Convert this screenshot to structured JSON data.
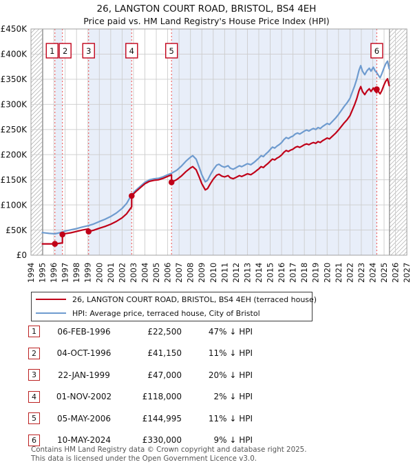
{
  "title": "26, LANGTON COURT ROAD, BRISTOL, BS4 4EH",
  "subtitle": "Price paid vs. HM Land Registry's House Price Index (HPI)",
  "legend": [
    {
      "label": "26, LANGTON COURT ROAD, BRISTOL, BS4 4EH (terraced house)",
      "color": "#c00018"
    },
    {
      "label": "HPI: Average price, terraced house, City of Bristol",
      "color": "#6e9bcf"
    }
  ],
  "chart_data": {
    "type": "line",
    "title": "26, LANGTON COURT ROAD, BRISTOL, BS4 4EH",
    "xlabel": "",
    "ylabel": "",
    "xlim": [
      1994,
      2027
    ],
    "ylim": [
      0,
      450000
    ],
    "grid": true,
    "x_ticks": [
      1994,
      1995,
      1996,
      1997,
      1998,
      1999,
      2000,
      2001,
      2002,
      2003,
      2004,
      2005,
      2006,
      2007,
      2008,
      2009,
      2010,
      2011,
      2012,
      2013,
      2014,
      2015,
      2016,
      2017,
      2018,
      2019,
      2020,
      2021,
      2022,
      2023,
      2024,
      2025,
      2026,
      2027
    ],
    "y_ticks": [
      {
        "v": 0,
        "label": "£0"
      },
      {
        "v": 50000,
        "label": "£50K"
      },
      {
        "v": 100000,
        "label": "£100K"
      },
      {
        "v": 150000,
        "label": "£150K"
      },
      {
        "v": 200000,
        "label": "£200K"
      },
      {
        "v": 250000,
        "label": "£250K"
      },
      {
        "v": 300000,
        "label": "£300K"
      },
      {
        "v": 350000,
        "label": "£350K"
      },
      {
        "v": 400000,
        "label": "£400K"
      },
      {
        "v": 450000,
        "label": "£450K"
      }
    ],
    "hpi_data_start": 1995.03,
    "data_end": 2025.47,
    "colors": {
      "property": "#c00018",
      "hpi": "#6e9bcf",
      "band": "#e8eef9",
      "grid": "#cccccc",
      "border": "#a0a0a0",
      "sale_line": "#f05a5a",
      "hatch": "#b5b5b5",
      "boundary": "#888888"
    },
    "bands": [
      [
        1996.1,
        1996.76
      ],
      [
        1999.06,
        2002.84
      ],
      [
        2006.34,
        2024.36
      ]
    ],
    "sales": [
      {
        "n": "1",
        "x": 1996.1,
        "price": 22500,
        "label_dx": -4
      },
      {
        "n": "2",
        "x": 1996.76,
        "price": 41150,
        "label_dx": 4
      },
      {
        "n": "3",
        "x": 1999.06,
        "price": 47000,
        "label_dx": 0
      },
      {
        "n": "4",
        "x": 2002.84,
        "price": 118000,
        "label_dx": 0
      },
      {
        "n": "5",
        "x": 2006.34,
        "price": 144995,
        "label_dx": 0
      },
      {
        "n": "6",
        "x": 2024.36,
        "price": 330000,
        "label_dx": 0
      }
    ],
    "series": [
      {
        "name": "26, LANGTON COURT ROAD, BRISTOL, BS4 4EH (terraced house)",
        "color": "#c00018",
        "points": [
          [
            1995.0,
            22500
          ],
          [
            1996.1,
            22500
          ],
          [
            1996.4,
            23300
          ],
          [
            1996.76,
            24400
          ],
          [
            1996.76,
            41150
          ],
          [
            1997.0,
            42800
          ],
          [
            1997.5,
            44600
          ],
          [
            1998.0,
            47200
          ],
          [
            1998.5,
            49900
          ],
          [
            1999.06,
            52400
          ],
          [
            1999.06,
            47000
          ],
          [
            1999.5,
            49600
          ],
          [
            2000.0,
            53600
          ],
          [
            2000.5,
            57200
          ],
          [
            2001.0,
            61600
          ],
          [
            2001.5,
            67200
          ],
          [
            2002.0,
            74400
          ],
          [
            2002.4,
            82400
          ],
          [
            2002.84,
            96300
          ],
          [
            2002.84,
            118000
          ],
          [
            2003.2,
            126400
          ],
          [
            2003.6,
            134300
          ],
          [
            2004.0,
            142100
          ],
          [
            2004.4,
            147000
          ],
          [
            2004.8,
            149000
          ],
          [
            2005.2,
            150000
          ],
          [
            2005.6,
            152900
          ],
          [
            2006.0,
            156800
          ],
          [
            2006.34,
            159700
          ],
          [
            2006.34,
            144995
          ],
          [
            2006.8,
            150300
          ],
          [
            2007.2,
            157400
          ],
          [
            2007.6,
            166300
          ],
          [
            2008.0,
            173500
          ],
          [
            2008.2,
            176100
          ],
          [
            2008.5,
            169900
          ],
          [
            2008.75,
            156500
          ],
          [
            2009.0,
            142300
          ],
          [
            2009.3,
            129900
          ],
          [
            2009.5,
            132500
          ],
          [
            2009.75,
            142300
          ],
          [
            2010.0,
            151200
          ],
          [
            2010.3,
            159200
          ],
          [
            2010.5,
            161000
          ],
          [
            2010.75,
            157400
          ],
          [
            2011.0,
            155700
          ],
          [
            2011.3,
            158300
          ],
          [
            2011.5,
            153900
          ],
          [
            2011.75,
            152100
          ],
          [
            2012.0,
            154800
          ],
          [
            2012.3,
            158300
          ],
          [
            2012.5,
            156500
          ],
          [
            2012.75,
            159200
          ],
          [
            2013.0,
            161900
          ],
          [
            2013.3,
            160100
          ],
          [
            2013.6,
            164600
          ],
          [
            2013.85,
            169000
          ],
          [
            2014.0,
            171700
          ],
          [
            2014.2,
            176100
          ],
          [
            2014.4,
            174400
          ],
          [
            2014.6,
            178800
          ],
          [
            2014.8,
            182400
          ],
          [
            2015.0,
            186800
          ],
          [
            2015.2,
            191300
          ],
          [
            2015.4,
            189500
          ],
          [
            2015.6,
            193100
          ],
          [
            2015.8,
            195700
          ],
          [
            2016.0,
            199300
          ],
          [
            2016.2,
            204600
          ],
          [
            2016.4,
            208200
          ],
          [
            2016.6,
            206400
          ],
          [
            2016.8,
            209100
          ],
          [
            2017.0,
            210900
          ],
          [
            2017.2,
            214400
          ],
          [
            2017.4,
            216200
          ],
          [
            2017.6,
            214400
          ],
          [
            2017.8,
            217100
          ],
          [
            2018.0,
            219800
          ],
          [
            2018.2,
            221500
          ],
          [
            2018.4,
            219800
          ],
          [
            2018.6,
            222400
          ],
          [
            2018.8,
            224200
          ],
          [
            2019.0,
            222400
          ],
          [
            2019.2,
            226000
          ],
          [
            2019.4,
            224200
          ],
          [
            2019.6,
            227700
          ],
          [
            2019.8,
            230400
          ],
          [
            2020.0,
            233100
          ],
          [
            2020.2,
            231300
          ],
          [
            2020.5,
            237500
          ],
          [
            2020.75,
            242800
          ],
          [
            2021.0,
            249100
          ],
          [
            2021.25,
            256200
          ],
          [
            2021.5,
            263300
          ],
          [
            2021.75,
            269500
          ],
          [
            2022.0,
            277500
          ],
          [
            2022.2,
            288200
          ],
          [
            2022.4,
            298900
          ],
          [
            2022.6,
            311400
          ],
          [
            2022.8,
            327400
          ],
          [
            2022.95,
            335400
          ],
          [
            2023.1,
            325600
          ],
          [
            2023.3,
            319400
          ],
          [
            2023.5,
            326500
          ],
          [
            2023.7,
            331000
          ],
          [
            2023.85,
            325600
          ],
          [
            2024.05,
            332700
          ],
          [
            2024.2,
            326500
          ],
          [
            2024.36,
            322900
          ],
          [
            2024.36,
            330000
          ],
          [
            2024.5,
            325500
          ],
          [
            2024.65,
            320900
          ],
          [
            2024.8,
            327300
          ],
          [
            2025.0,
            339100
          ],
          [
            2025.15,
            346400
          ],
          [
            2025.3,
            350900
          ],
          [
            2025.45,
            337300
          ]
        ]
      },
      {
        "name": "HPI: Average price, terraced house, City of Bristol",
        "color": "#6e9bcf",
        "points": [
          [
            1995.0,
            45000
          ],
          [
            1995.3,
            44200
          ],
          [
            1995.6,
            43400
          ],
          [
            1996.1,
            42500
          ],
          [
            1996.4,
            44000
          ],
          [
            1996.76,
            46200
          ],
          [
            1997.0,
            48000
          ],
          [
            1997.5,
            50500
          ],
          [
            1998.0,
            53000
          ],
          [
            1998.5,
            56000
          ],
          [
            1999.06,
            58800
          ],
          [
            1999.5,
            62000
          ],
          [
            2000.0,
            67000
          ],
          [
            2000.5,
            71500
          ],
          [
            2001.0,
            77000
          ],
          [
            2001.5,
            84000
          ],
          [
            2002.0,
            93000
          ],
          [
            2002.4,
            103000
          ],
          [
            2002.84,
            120400
          ],
          [
            2003.2,
            129000
          ],
          [
            2003.6,
            137000
          ],
          [
            2004.0,
            145000
          ],
          [
            2004.4,
            150000
          ],
          [
            2004.8,
            152000
          ],
          [
            2005.2,
            153000
          ],
          [
            2005.6,
            156000
          ],
          [
            2006.0,
            160000
          ],
          [
            2006.34,
            163000
          ],
          [
            2006.8,
            169000
          ],
          [
            2007.2,
            177000
          ],
          [
            2007.6,
            187000
          ],
          [
            2008.0,
            195000
          ],
          [
            2008.2,
            198000
          ],
          [
            2008.5,
            191000
          ],
          [
            2008.75,
            176000
          ],
          [
            2009.0,
            160000
          ],
          [
            2009.3,
            146000
          ],
          [
            2009.5,
            149000
          ],
          [
            2009.75,
            160000
          ],
          [
            2010.0,
            170000
          ],
          [
            2010.3,
            179000
          ],
          [
            2010.5,
            181000
          ],
          [
            2010.75,
            177000
          ],
          [
            2011.0,
            175000
          ],
          [
            2011.3,
            178000
          ],
          [
            2011.5,
            173000
          ],
          [
            2011.75,
            171000
          ],
          [
            2012.0,
            174000
          ],
          [
            2012.3,
            178000
          ],
          [
            2012.5,
            176000
          ],
          [
            2012.75,
            179000
          ],
          [
            2013.0,
            182000
          ],
          [
            2013.3,
            180000
          ],
          [
            2013.6,
            185000
          ],
          [
            2013.85,
            190000
          ],
          [
            2014.0,
            193000
          ],
          [
            2014.2,
            198000
          ],
          [
            2014.4,
            196000
          ],
          [
            2014.6,
            201000
          ],
          [
            2014.8,
            205000
          ],
          [
            2015.0,
            210000
          ],
          [
            2015.2,
            215000
          ],
          [
            2015.4,
            213000
          ],
          [
            2015.6,
            217000
          ],
          [
            2015.8,
            220000
          ],
          [
            2016.0,
            224000
          ],
          [
            2016.2,
            230000
          ],
          [
            2016.4,
            234000
          ],
          [
            2016.6,
            232000
          ],
          [
            2016.8,
            235000
          ],
          [
            2017.0,
            237000
          ],
          [
            2017.2,
            241000
          ],
          [
            2017.4,
            243000
          ],
          [
            2017.6,
            241000
          ],
          [
            2017.8,
            244000
          ],
          [
            2018.0,
            247000
          ],
          [
            2018.2,
            249000
          ],
          [
            2018.4,
            247000
          ],
          [
            2018.6,
            250000
          ],
          [
            2018.8,
            252000
          ],
          [
            2019.0,
            250000
          ],
          [
            2019.2,
            254000
          ],
          [
            2019.4,
            252000
          ],
          [
            2019.6,
            256000
          ],
          [
            2019.8,
            259000
          ],
          [
            2020.0,
            262000
          ],
          [
            2020.2,
            260000
          ],
          [
            2020.5,
            267000
          ],
          [
            2020.75,
            273000
          ],
          [
            2021.0,
            280000
          ],
          [
            2021.25,
            288000
          ],
          [
            2021.5,
            296000
          ],
          [
            2021.75,
            303000
          ],
          [
            2022.0,
            312000
          ],
          [
            2022.2,
            324000
          ],
          [
            2022.4,
            336000
          ],
          [
            2022.6,
            350000
          ],
          [
            2022.8,
            368000
          ],
          [
            2022.95,
            377000
          ],
          [
            2023.1,
            366000
          ],
          [
            2023.3,
            359000
          ],
          [
            2023.5,
            367000
          ],
          [
            2023.7,
            372000
          ],
          [
            2023.85,
            366000
          ],
          [
            2024.05,
            374000
          ],
          [
            2024.2,
            367000
          ],
          [
            2024.36,
            363000
          ],
          [
            2024.5,
            358000
          ],
          [
            2024.65,
            353000
          ],
          [
            2024.8,
            361000
          ],
          [
            2025.0,
            373000
          ],
          [
            2025.15,
            381000
          ],
          [
            2025.3,
            386000
          ],
          [
            2025.45,
            371000
          ]
        ]
      }
    ]
  },
  "table": {
    "rows": [
      {
        "n": "1",
        "date": "06-FEB-1996",
        "price": "£22,500",
        "hpi": "47% ↓ HPI"
      },
      {
        "n": "2",
        "date": "04-OCT-1996",
        "price": "£41,150",
        "hpi": "11% ↓ HPI"
      },
      {
        "n": "3",
        "date": "22-JAN-1999",
        "price": "£47,000",
        "hpi": "20% ↓ HPI"
      },
      {
        "n": "4",
        "date": "01-NOV-2002",
        "price": "£118,000",
        "hpi": "2% ↓ HPI"
      },
      {
        "n": "5",
        "date": "05-MAY-2006",
        "price": "£144,995",
        "hpi": "11% ↓ HPI"
      },
      {
        "n": "6",
        "date": "10-MAY-2024",
        "price": "£330,000",
        "hpi": "9% ↓ HPI"
      }
    ]
  },
  "footer": {
    "line1": "Contains HM Land Registry data © Crown copyright and database right 2025.",
    "line2": "This data is licensed under the Open Government Licence v3.0."
  }
}
